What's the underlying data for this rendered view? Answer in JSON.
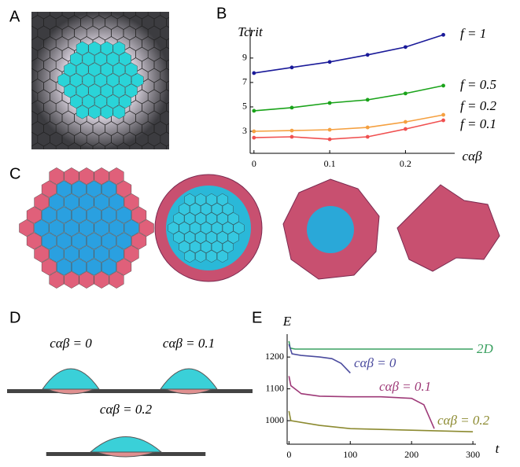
{
  "panels": {
    "labels": [
      "A",
      "B",
      "C",
      "D",
      "E"
    ],
    "d_labels": [
      "cαβ = 0",
      "cαβ = 0.1",
      "cαβ = 0.2"
    ]
  },
  "chart_data": [
    {
      "type": "line",
      "ylabel": "Tcrit",
      "xlabel": "cαβ",
      "xlim": [
        -0.005,
        0.265
      ],
      "ylim": [
        1.2,
        11.5
      ],
      "xticks": [
        0,
        0.1,
        0.2
      ],
      "yticks": [
        3,
        5,
        7,
        9
      ],
      "markers": true,
      "x": [
        0,
        0.05,
        0.1,
        0.15,
        0.2,
        0.25
      ],
      "series": [
        {
          "name": "f = 1",
          "color": "#1a1a99",
          "values": [
            7.77,
            8.23,
            8.68,
            9.26,
            9.9,
            10.9
          ]
        },
        {
          "name": "f = 0.5",
          "color": "#1aa31a",
          "values": [
            4.68,
            4.94,
            5.32,
            5.58,
            6.1,
            6.74
          ]
        },
        {
          "name": "f = 0.2",
          "color": "#f5a040",
          "values": [
            3,
            3.06,
            3.13,
            3.32,
            3.77,
            4.35
          ]
        },
        {
          "name": "f = 0.1",
          "color": "#f05050",
          "values": [
            2.48,
            2.55,
            2.35,
            2.55,
            3.19,
            3.9
          ]
        }
      ]
    },
    {
      "type": "line",
      "ylabel": "E",
      "xlabel": "t",
      "xlim": [
        -3,
        305
      ],
      "ylim": [
        926,
        1272
      ],
      "xticks": [
        0,
        100,
        200,
        300
      ],
      "yticks": [
        1000,
        1100,
        1200
      ],
      "markers": false,
      "series": [
        {
          "name": "2D",
          "color": "#3aa060",
          "x": [
            0,
            2,
            10,
            300
          ],
          "values": [
            1250,
            1228,
            1225,
            1225
          ]
        },
        {
          "name": "cαβ = 0",
          "color": "#4b4b9e",
          "x": [
            0,
            5,
            20,
            50,
            70,
            85,
            100
          ],
          "values": [
            1240,
            1210,
            1205,
            1200,
            1195,
            1180,
            1150
          ]
        },
        {
          "name": "cαβ = 0.1",
          "color": "#9e3a78",
          "x": [
            0,
            3,
            20,
            50,
            100,
            150,
            200,
            220,
            237
          ],
          "values": [
            1140,
            1110,
            1085,
            1077,
            1075,
            1075,
            1070,
            1050,
            975
          ]
        },
        {
          "name": "cαβ = 0.2",
          "color": "#8c8a30",
          "x": [
            0,
            3,
            50,
            100,
            200,
            300
          ],
          "values": [
            1030,
            1000,
            985,
            975,
            970,
            965
          ]
        }
      ]
    }
  ]
}
